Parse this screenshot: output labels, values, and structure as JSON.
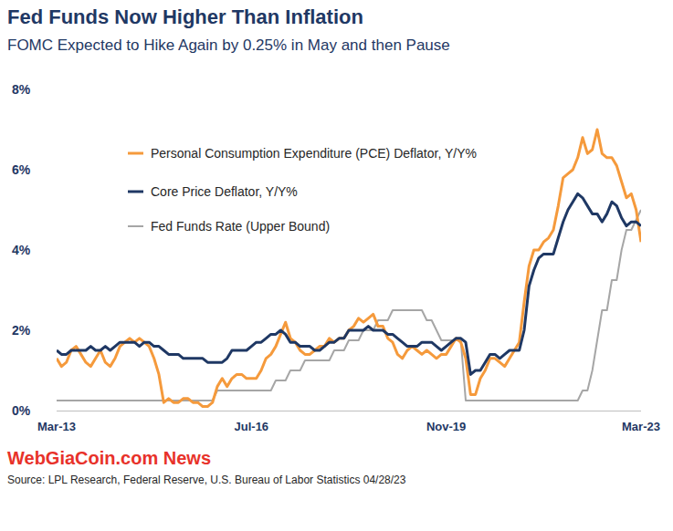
{
  "chart_data": {
    "type": "line",
    "title": "Fed Funds Now Higher Than Inflation",
    "subtitle": "FOMC Expected to Hike Again by 0.25% in May and then Pause",
    "watermark": "WebGiaCoin.com News",
    "source": "Source: LPL Research, Federal Reserve, U.S. Bureau of Labor Statistics 04/28/23",
    "categories": [
      "Mar-13",
      null,
      null,
      null,
      null,
      null,
      null,
      null,
      null,
      null,
      null,
      null,
      null,
      null,
      null,
      null,
      null,
      null,
      null,
      null,
      null,
      null,
      null,
      null,
      null,
      null,
      null,
      null,
      null,
      null,
      null,
      null,
      null,
      null,
      null,
      null,
      null,
      null,
      null,
      null,
      "Jul-16",
      null,
      null,
      null,
      null,
      null,
      null,
      null,
      null,
      null,
      null,
      null,
      null,
      null,
      null,
      null,
      null,
      null,
      null,
      null,
      null,
      null,
      null,
      null,
      null,
      null,
      null,
      null,
      null,
      null,
      null,
      null,
      null,
      null,
      null,
      null,
      null,
      null,
      null,
      null,
      "Nov-19",
      null,
      null,
      null,
      null,
      null,
      null,
      null,
      null,
      null,
      null,
      null,
      null,
      null,
      null,
      null,
      null,
      null,
      null,
      null,
      null,
      null,
      null,
      null,
      null,
      null,
      null,
      null,
      null,
      null,
      null,
      null,
      null,
      null,
      null,
      null,
      null,
      null,
      null,
      null,
      "Mar-23"
    ],
    "series": [
      {
        "name": "Fed Funds Rate (Upper Bound)",
        "color": "#a6a6a6",
        "values": [
          0.25,
          0.25,
          0.25,
          0.25,
          0.25,
          0.25,
          0.25,
          0.25,
          0.25,
          0.25,
          0.25,
          0.25,
          0.25,
          0.25,
          0.25,
          0.25,
          0.25,
          0.25,
          0.25,
          0.25,
          0.25,
          0.25,
          0.25,
          0.25,
          0.25,
          0.25,
          0.25,
          0.25,
          0.25,
          0.25,
          0.25,
          0.25,
          0.25,
          0.5,
          0.5,
          0.5,
          0.5,
          0.5,
          0.5,
          0.5,
          0.5,
          0.5,
          0.5,
          0.5,
          0.5,
          0.75,
          0.75,
          0.75,
          1.0,
          1.0,
          1.0,
          1.25,
          1.25,
          1.25,
          1.25,
          1.25,
          1.25,
          1.5,
          1.5,
          1.5,
          1.75,
          1.75,
          1.75,
          2.0,
          2.0,
          2.0,
          2.25,
          2.25,
          2.25,
          2.5,
          2.5,
          2.5,
          2.5,
          2.5,
          2.5,
          2.5,
          2.25,
          2.25,
          2.0,
          1.75,
          1.75,
          1.75,
          1.75,
          1.75,
          0.25,
          0.25,
          0.25,
          0.25,
          0.25,
          0.25,
          0.25,
          0.25,
          0.25,
          0.25,
          0.25,
          0.25,
          0.25,
          0.25,
          0.25,
          0.25,
          0.25,
          0.25,
          0.25,
          0.25,
          0.25,
          0.25,
          0.25,
          0.25,
          0.5,
          0.5,
          1.0,
          1.75,
          2.5,
          2.5,
          3.25,
          3.25,
          4.0,
          4.5,
          4.5,
          4.75,
          5.0
        ]
      },
      {
        "name": "Personal Consumption Expenditure (PCE) Deflator, Y/Y%",
        "color": "#f59a3c",
        "values": [
          1.3,
          1.1,
          1.2,
          1.5,
          1.6,
          1.4,
          1.2,
          1.1,
          1.3,
          1.5,
          1.2,
          1.1,
          1.3,
          1.6,
          1.7,
          1.8,
          1.7,
          1.8,
          1.7,
          1.6,
          1.3,
          0.9,
          0.2,
          0.3,
          0.2,
          0.2,
          0.3,
          0.3,
          0.2,
          0.2,
          0.1,
          0.1,
          0.2,
          0.6,
          0.8,
          0.6,
          0.8,
          0.9,
          0.9,
          0.8,
          0.8,
          0.8,
          1.0,
          1.3,
          1.4,
          1.6,
          1.9,
          2.2,
          1.8,
          1.7,
          1.5,
          1.4,
          1.4,
          1.5,
          1.6,
          1.6,
          1.8,
          1.7,
          1.8,
          1.8,
          2.0,
          2.1,
          2.3,
          2.2,
          2.3,
          2.4,
          2.1,
          2.1,
          1.8,
          1.7,
          1.4,
          1.3,
          1.5,
          1.6,
          1.5,
          1.4,
          1.5,
          1.4,
          1.3,
          1.4,
          1.4,
          1.6,
          1.8,
          1.7,
          1.3,
          0.4,
          0.4,
          0.8,
          1.0,
          1.3,
          1.3,
          1.2,
          1.1,
          1.3,
          1.5,
          1.7,
          2.7,
          3.6,
          4.0,
          4.0,
          4.2,
          4.3,
          4.5,
          5.1,
          5.8,
          5.9,
          6.0,
          6.3,
          6.8,
          6.4,
          6.5,
          7.0,
          6.4,
          6.3,
          6.3,
          6.1,
          5.7,
          5.3,
          5.4,
          5.0,
          4.2
        ]
      },
      {
        "name": "Core Price Deflator, Y/Y%",
        "color": "#1f3864",
        "values": [
          1.5,
          1.4,
          1.4,
          1.5,
          1.5,
          1.5,
          1.5,
          1.6,
          1.5,
          1.5,
          1.6,
          1.5,
          1.6,
          1.7,
          1.7,
          1.7,
          1.7,
          1.6,
          1.7,
          1.7,
          1.6,
          1.6,
          1.5,
          1.4,
          1.4,
          1.4,
          1.3,
          1.3,
          1.3,
          1.3,
          1.3,
          1.2,
          1.2,
          1.2,
          1.2,
          1.3,
          1.5,
          1.5,
          1.5,
          1.5,
          1.6,
          1.7,
          1.7,
          1.8,
          1.9,
          1.9,
          2.0,
          1.9,
          1.7,
          1.7,
          1.6,
          1.6,
          1.6,
          1.5,
          1.5,
          1.6,
          1.7,
          1.7,
          1.8,
          1.8,
          2.0,
          2.0,
          2.0,
          2.0,
          2.1,
          2.0,
          2.0,
          2.0,
          1.9,
          1.9,
          1.8,
          1.7,
          1.6,
          1.6,
          1.6,
          1.7,
          1.7,
          1.7,
          1.6,
          1.5,
          1.6,
          1.7,
          1.8,
          1.8,
          1.7,
          0.9,
          1.0,
          1.0,
          1.2,
          1.4,
          1.4,
          1.3,
          1.4,
          1.5,
          1.5,
          1.5,
          2.0,
          3.1,
          3.5,
          3.8,
          3.9,
          3.9,
          3.9,
          4.3,
          4.7,
          5.0,
          5.2,
          5.4,
          5.3,
          5.1,
          4.9,
          4.9,
          4.7,
          4.9,
          5.2,
          5.1,
          4.8,
          4.6,
          4.7,
          4.7,
          4.6
        ]
      }
    ],
    "legend_order": [
      1,
      2,
      0
    ],
    "ylim": [
      0,
      8
    ],
    "yticks": [
      {
        "value": 0,
        "label": "0%"
      },
      {
        "value": 2,
        "label": "2%"
      },
      {
        "value": 4,
        "label": "4%"
      },
      {
        "value": 6,
        "label": "6%"
      },
      {
        "value": 8,
        "label": "8%"
      }
    ],
    "grid": false,
    "legend": "upper-left"
  }
}
